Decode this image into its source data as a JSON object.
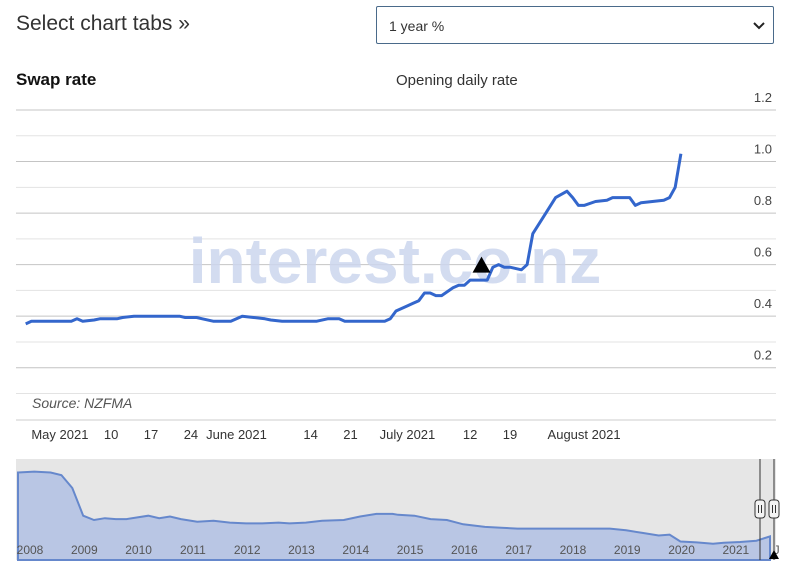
{
  "header": {
    "title": "Select chart tabs »",
    "select_value": "1 year %"
  },
  "chart_data": [
    {
      "type": "line",
      "title": "Swap rate",
      "subtitle": "Opening daily rate",
      "source": "Source: NZFMA",
      "watermark": "interest.co.nz",
      "color": "#3366cc",
      "ylim": [
        0.1,
        1.2
      ],
      "yticks": [
        0.2,
        0.4,
        0.6,
        0.8,
        1.0,
        1.2
      ],
      "ytick_labels": [
        "0.2",
        "0.4",
        "0.6",
        "0.8",
        "1.0",
        "1.2"
      ],
      "grid": true,
      "xlim": [
        "2021-04-24",
        "2021-08-31"
      ],
      "xticks": [
        {
          "date": "2021-05-01",
          "label": "May 2021"
        },
        {
          "date": "2021-05-10",
          "label": "10"
        },
        {
          "date": "2021-05-17",
          "label": "17"
        },
        {
          "date": "2021-05-24",
          "label": "24"
        },
        {
          "date": "2021-06-01",
          "label": "June 2021"
        },
        {
          "date": "2021-06-14",
          "label": "14"
        },
        {
          "date": "2021-06-21",
          "label": "21"
        },
        {
          "date": "2021-07-01",
          "label": "July 2021"
        },
        {
          "date": "2021-07-12",
          "label": "12"
        },
        {
          "date": "2021-07-19",
          "label": "19"
        },
        {
          "date": "2021-08-01",
          "label": "August 2021"
        }
      ],
      "marker": {
        "date": "2021-07-14",
        "value": 0.6,
        "shape": "triangle-up"
      },
      "series": [
        {
          "points": [
            [
              "2021-04-25",
              0.37
            ],
            [
              "2021-04-26",
              0.38
            ],
            [
              "2021-05-03",
              0.38
            ],
            [
              "2021-05-04",
              0.39
            ],
            [
              "2021-05-05",
              0.38
            ],
            [
              "2021-05-07",
              0.385
            ],
            [
              "2021-05-08",
              0.39
            ],
            [
              "2021-05-11",
              0.39
            ],
            [
              "2021-05-12",
              0.395
            ],
            [
              "2021-05-14",
              0.4
            ],
            [
              "2021-05-22",
              0.4
            ],
            [
              "2021-05-23",
              0.395
            ],
            [
              "2021-05-25",
              0.395
            ],
            [
              "2021-05-26",
              0.39
            ],
            [
              "2021-05-28",
              0.38
            ],
            [
              "2021-05-31",
              0.38
            ],
            [
              "2021-06-01",
              0.39
            ],
            [
              "2021-06-02",
              0.4
            ],
            [
              "2021-06-04",
              0.395
            ],
            [
              "2021-06-06",
              0.39
            ],
            [
              "2021-06-07",
              0.385
            ],
            [
              "2021-06-09",
              0.38
            ],
            [
              "2021-06-15",
              0.38
            ],
            [
              "2021-06-17",
              0.39
            ],
            [
              "2021-06-19",
              0.39
            ],
            [
              "2021-06-20",
              0.38
            ],
            [
              "2021-06-26",
              0.38
            ],
            [
              "2021-06-27",
              0.38
            ],
            [
              "2021-06-28",
              0.39
            ],
            [
              "2021-06-29",
              0.42
            ],
            [
              "2021-07-01",
              0.44
            ],
            [
              "2021-07-02",
              0.45
            ],
            [
              "2021-07-03",
              0.46
            ],
            [
              "2021-07-04",
              0.49
            ],
            [
              "2021-07-05",
              0.49
            ],
            [
              "2021-07-06",
              0.48
            ],
            [
              "2021-07-07",
              0.48
            ],
            [
              "2021-07-09",
              0.51
            ],
            [
              "2021-07-10",
              0.52
            ],
            [
              "2021-07-11",
              0.52
            ],
            [
              "2021-07-12",
              0.54
            ],
            [
              "2021-07-15",
              0.54
            ],
            [
              "2021-07-16",
              0.59
            ],
            [
              "2021-07-17",
              0.6
            ],
            [
              "2021-07-18",
              0.59
            ],
            [
              "2021-07-19",
              0.59
            ],
            [
              "2021-07-21",
              0.58
            ],
            [
              "2021-07-22",
              0.6
            ],
            [
              "2021-07-23",
              0.72
            ],
            [
              "2021-07-25",
              0.79
            ],
            [
              "2021-07-27",
              0.86
            ],
            [
              "2021-07-29",
              0.885
            ],
            [
              "2021-07-30",
              0.86
            ],
            [
              "2021-07-31",
              0.83
            ],
            [
              "2021-08-01",
              0.83
            ],
            [
              "2021-08-03",
              0.845
            ],
            [
              "2021-08-05",
              0.85
            ],
            [
              "2021-08-06",
              0.86
            ],
            [
              "2021-08-08",
              0.86
            ],
            [
              "2021-08-09",
              0.86
            ],
            [
              "2021-08-10",
              0.83
            ],
            [
              "2021-08-11",
              0.84
            ],
            [
              "2021-08-13",
              0.845
            ],
            [
              "2021-08-15",
              0.85
            ],
            [
              "2021-08-16",
              0.86
            ],
            [
              "2021-08-17",
              0.9
            ],
            [
              "2021-08-18",
              1.03
            ]
          ]
        }
      ]
    },
    {
      "type": "area",
      "role": "navigator",
      "color": "#6688cc",
      "fill": "#b9c6e4",
      "xlim": [
        2008,
        2021.85
      ],
      "xtick_labels": [
        "2008",
        "2009",
        "2010",
        "2011",
        "2012",
        "2013",
        "2014",
        "2015",
        "2016",
        "2017",
        "2018",
        "2019",
        "2020",
        "2021",
        "J"
      ],
      "xtick_years": [
        2008,
        2009,
        2010,
        2011,
        2012,
        2013,
        2014,
        2015,
        2016,
        2017,
        2018,
        2019,
        2020,
        2021,
        2021.75
      ],
      "ylim": [
        0,
        9.5
      ],
      "series": [
        {
          "points": [
            [
              2008.0,
              8.4
            ],
            [
              2008.3,
              8.5
            ],
            [
              2008.6,
              8.4
            ],
            [
              2008.8,
              8.1
            ],
            [
              2009.0,
              6.6
            ],
            [
              2009.2,
              3.4
            ],
            [
              2009.4,
              2.9
            ],
            [
              2009.6,
              3.1
            ],
            [
              2009.8,
              3.0
            ],
            [
              2010.0,
              3.0
            ],
            [
              2010.2,
              3.2
            ],
            [
              2010.4,
              3.4
            ],
            [
              2010.6,
              3.1
            ],
            [
              2010.8,
              3.3
            ],
            [
              2011.0,
              3.0
            ],
            [
              2011.3,
              2.7
            ],
            [
              2011.6,
              2.8
            ],
            [
              2011.9,
              2.6
            ],
            [
              2012.2,
              2.5
            ],
            [
              2012.5,
              2.5
            ],
            [
              2012.8,
              2.6
            ],
            [
              2013.0,
              2.5
            ],
            [
              2013.3,
              2.6
            ],
            [
              2013.6,
              2.8
            ],
            [
              2014.0,
              2.9
            ],
            [
              2014.3,
              3.3
            ],
            [
              2014.6,
              3.6
            ],
            [
              2014.9,
              3.6
            ],
            [
              2015.0,
              3.5
            ],
            [
              2015.3,
              3.4
            ],
            [
              2015.6,
              3.0
            ],
            [
              2015.9,
              2.9
            ],
            [
              2016.2,
              2.4
            ],
            [
              2016.6,
              2.1
            ],
            [
              2016.9,
              2.0
            ],
            [
              2017.2,
              1.9
            ],
            [
              2017.6,
              1.9
            ],
            [
              2017.9,
              1.9
            ],
            [
              2018.3,
              1.9
            ],
            [
              2018.6,
              1.9
            ],
            [
              2018.9,
              1.9
            ],
            [
              2019.2,
              1.7
            ],
            [
              2019.5,
              1.4
            ],
            [
              2019.8,
              1.1
            ],
            [
              2020.0,
              1.2
            ],
            [
              2020.2,
              0.4
            ],
            [
              2020.5,
              0.3
            ],
            [
              2020.8,
              0.15
            ],
            [
              2021.0,
              0.25
            ],
            [
              2021.3,
              0.35
            ],
            [
              2021.6,
              0.5
            ],
            [
              2021.85,
              1.0
            ]
          ]
        }
      ]
    }
  ]
}
